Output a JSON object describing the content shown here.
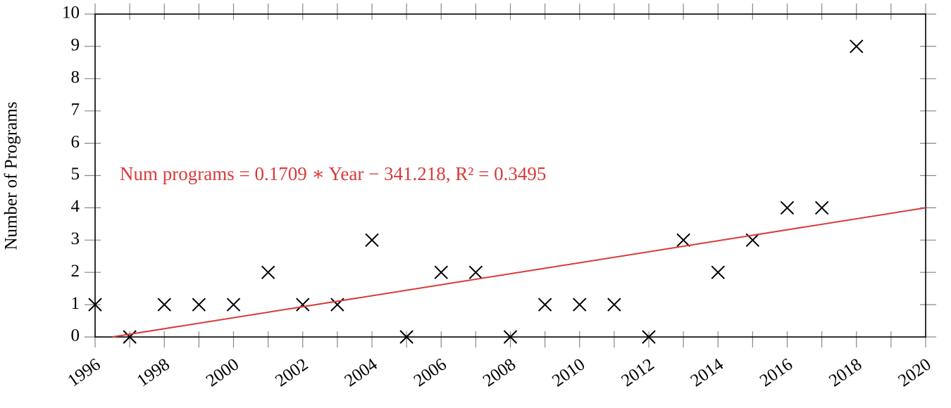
{
  "chart_data": {
    "type": "scatter",
    "ylabel": "Number of Programs",
    "annotation": "Num programs = 0.1709 ∗ Year − 341.218, R² = 0.3495",
    "xlim": [
      1996,
      2020
    ],
    "ylim": [
      0,
      10
    ],
    "xticks": [
      1996,
      1998,
      2000,
      2002,
      2004,
      2006,
      2008,
      2010,
      2012,
      2014,
      2016,
      2018,
      2020
    ],
    "yticks": [
      0,
      1,
      2,
      3,
      4,
      5,
      6,
      7,
      8,
      9,
      10
    ],
    "grid": false,
    "series": [
      {
        "color": "#000000",
        "marker": "x",
        "x": [
          1996,
          1997,
          1998,
          1999,
          2000,
          2001,
          2002,
          2003,
          2004,
          2005,
          2006,
          2007,
          2008,
          2009,
          2010,
          2011,
          2012,
          2013,
          2014,
          2015,
          2016,
          2017,
          2018
        ],
        "values": [
          1,
          0,
          1,
          1,
          1,
          2,
          1,
          1,
          3,
          0,
          2,
          2,
          0,
          1,
          1,
          1,
          0,
          3,
          2,
          3,
          4,
          4,
          9
        ]
      },
      {
        "color": "#d93a3a",
        "marker": "line",
        "x": [
          1996.5,
          2020
        ],
        "values": [
          0,
          4
        ]
      }
    ]
  }
}
